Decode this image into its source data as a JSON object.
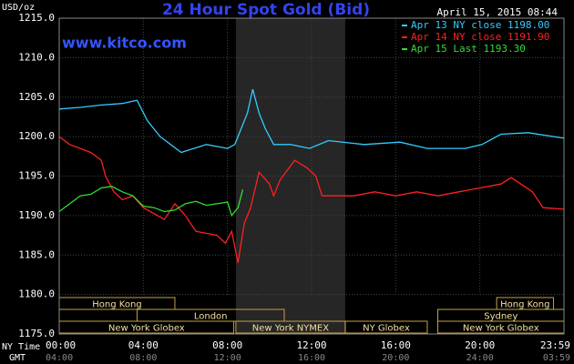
{
  "chart_data": {
    "type": "line",
    "title": "24 Hour Spot Gold (Bid)",
    "timestamp": "April 15, 2015 08:44",
    "watermark": "www.kitco.com",
    "y_label": "USD/oz",
    "x_label": "NY Time",
    "x2_label": "GMT",
    "xlim": [
      0,
      24
    ],
    "xticks": [
      {
        "value": 0,
        "label": "00:00"
      },
      {
        "value": 4,
        "label": "04:00"
      },
      {
        "value": 8,
        "label": "08:00"
      },
      {
        "value": 12,
        "label": "12:00"
      },
      {
        "value": 16,
        "label": "16:00"
      },
      {
        "value": 20,
        "label": "20:00"
      },
      {
        "value": 24,
        "label": "23:59"
      }
    ],
    "x2_tick_labels": [
      "04:00",
      "08:00",
      "12:00",
      "16:00",
      "20:00",
      "24:00",
      "03:59"
    ],
    "ylim": [
      1175,
      1215
    ],
    "yticks": [
      {
        "value": 1175,
        "label": "1175.0"
      },
      {
        "value": 1180,
        "label": "1180.0"
      },
      {
        "value": 1185,
        "label": "1185.0"
      },
      {
        "value": 1190,
        "label": "1190.0"
      },
      {
        "value": 1195,
        "label": "1195.0"
      },
      {
        "value": 1200,
        "label": "1200.0"
      },
      {
        "value": 1205,
        "label": "1205.0"
      },
      {
        "value": 1210,
        "label": "1210.0"
      },
      {
        "value": 1215,
        "label": "1215.0"
      }
    ],
    "grid": true,
    "legend": "top-right",
    "sessions": [
      {
        "label": "Hong Kong",
        "row": 0,
        "start": 0,
        "end": 5.5
      },
      {
        "label": "Hong Kong",
        "row": 0,
        "start": 20.8,
        "end": 23.5
      },
      {
        "label": "London",
        "row": 1,
        "start": 3.7,
        "end": 10.7
      },
      {
        "label": "Sydney",
        "row": 1,
        "start": 18,
        "end": 24
      },
      {
        "label": "New York Globex",
        "row": 2,
        "start": 0,
        "end": 8.3
      },
      {
        "label": "New York NYMEX",
        "row": 2,
        "start": 8.4,
        "end": 13.6,
        "highlight": true
      },
      {
        "label": "NY Globex",
        "row": 2,
        "start": 13.6,
        "end": 17.5
      },
      {
        "label": "New York Globex",
        "row": 2,
        "start": 18,
        "end": 24
      }
    ],
    "series": [
      {
        "name": "Apr 13 NY close 1198.00",
        "color": "#33ccff",
        "x": [
          0,
          1,
          2,
          3,
          3.7,
          4.2,
          4.8,
          5.8,
          7,
          8,
          8.35,
          8.65,
          8.95,
          9.2,
          9.5,
          9.8,
          10.2,
          11,
          11.9,
          12.8,
          14.5,
          16.2,
          17.5,
          19.3,
          20.1,
          21,
          22.3,
          24
        ],
        "values": [
          1203.5,
          1203.7,
          1204,
          1204.2,
          1204.6,
          1202,
          1200,
          1198,
          1199,
          1198.5,
          1199,
          1201,
          1203,
          1206,
          1203,
          1201,
          1199,
          1199,
          1198.5,
          1199.5,
          1199,
          1199.3,
          1198.5,
          1198.5,
          1199,
          1200.3,
          1200.5,
          1199.8
        ]
      },
      {
        "name": "Apr 14 NY close 1191.90",
        "color": "#ff2020",
        "x": [
          0,
          0.5,
          1.5,
          2,
          2.2,
          2.6,
          3,
          3.5,
          4,
          5,
          5.5,
          6,
          6.5,
          7.5,
          7.9,
          8.2,
          8.5,
          8.8,
          9.1,
          9.5,
          10,
          10.2,
          10.5,
          11.2,
          11.8,
          12.2,
          12.5,
          14,
          15,
          16,
          17,
          18,
          19,
          20,
          21,
          21.5,
          22.5,
          23,
          24
        ],
        "values": [
          1200,
          1199,
          1198,
          1197,
          1195,
          1193,
          1192,
          1192.5,
          1191,
          1189.5,
          1191.5,
          1190,
          1188,
          1187.5,
          1186.5,
          1188,
          1184,
          1189,
          1191,
          1195.5,
          1194,
          1192.5,
          1194.5,
          1197,
          1196,
          1195,
          1192.5,
          1192.5,
          1193,
          1192.5,
          1193,
          1192.5,
          1193,
          1193.5,
          1194,
          1194.8,
          1193,
          1191,
          1190.8
        ]
      },
      {
        "name": "Apr 15 Last 1193.30",
        "color": "#33dd33",
        "x": [
          0,
          0.5,
          1,
          1.5,
          2,
          2.5,
          3,
          3.5,
          4,
          4.5,
          5,
          5.5,
          6,
          6.5,
          7,
          7.5,
          8,
          8.2,
          8.5,
          8.73
        ],
        "values": [
          1190.5,
          1191.5,
          1192.5,
          1192.7,
          1193.5,
          1193.7,
          1193,
          1192.5,
          1191.2,
          1191,
          1190.5,
          1190.7,
          1191.5,
          1191.8,
          1191.3,
          1191.5,
          1191.7,
          1190,
          1191,
          1193.3
        ]
      }
    ]
  }
}
